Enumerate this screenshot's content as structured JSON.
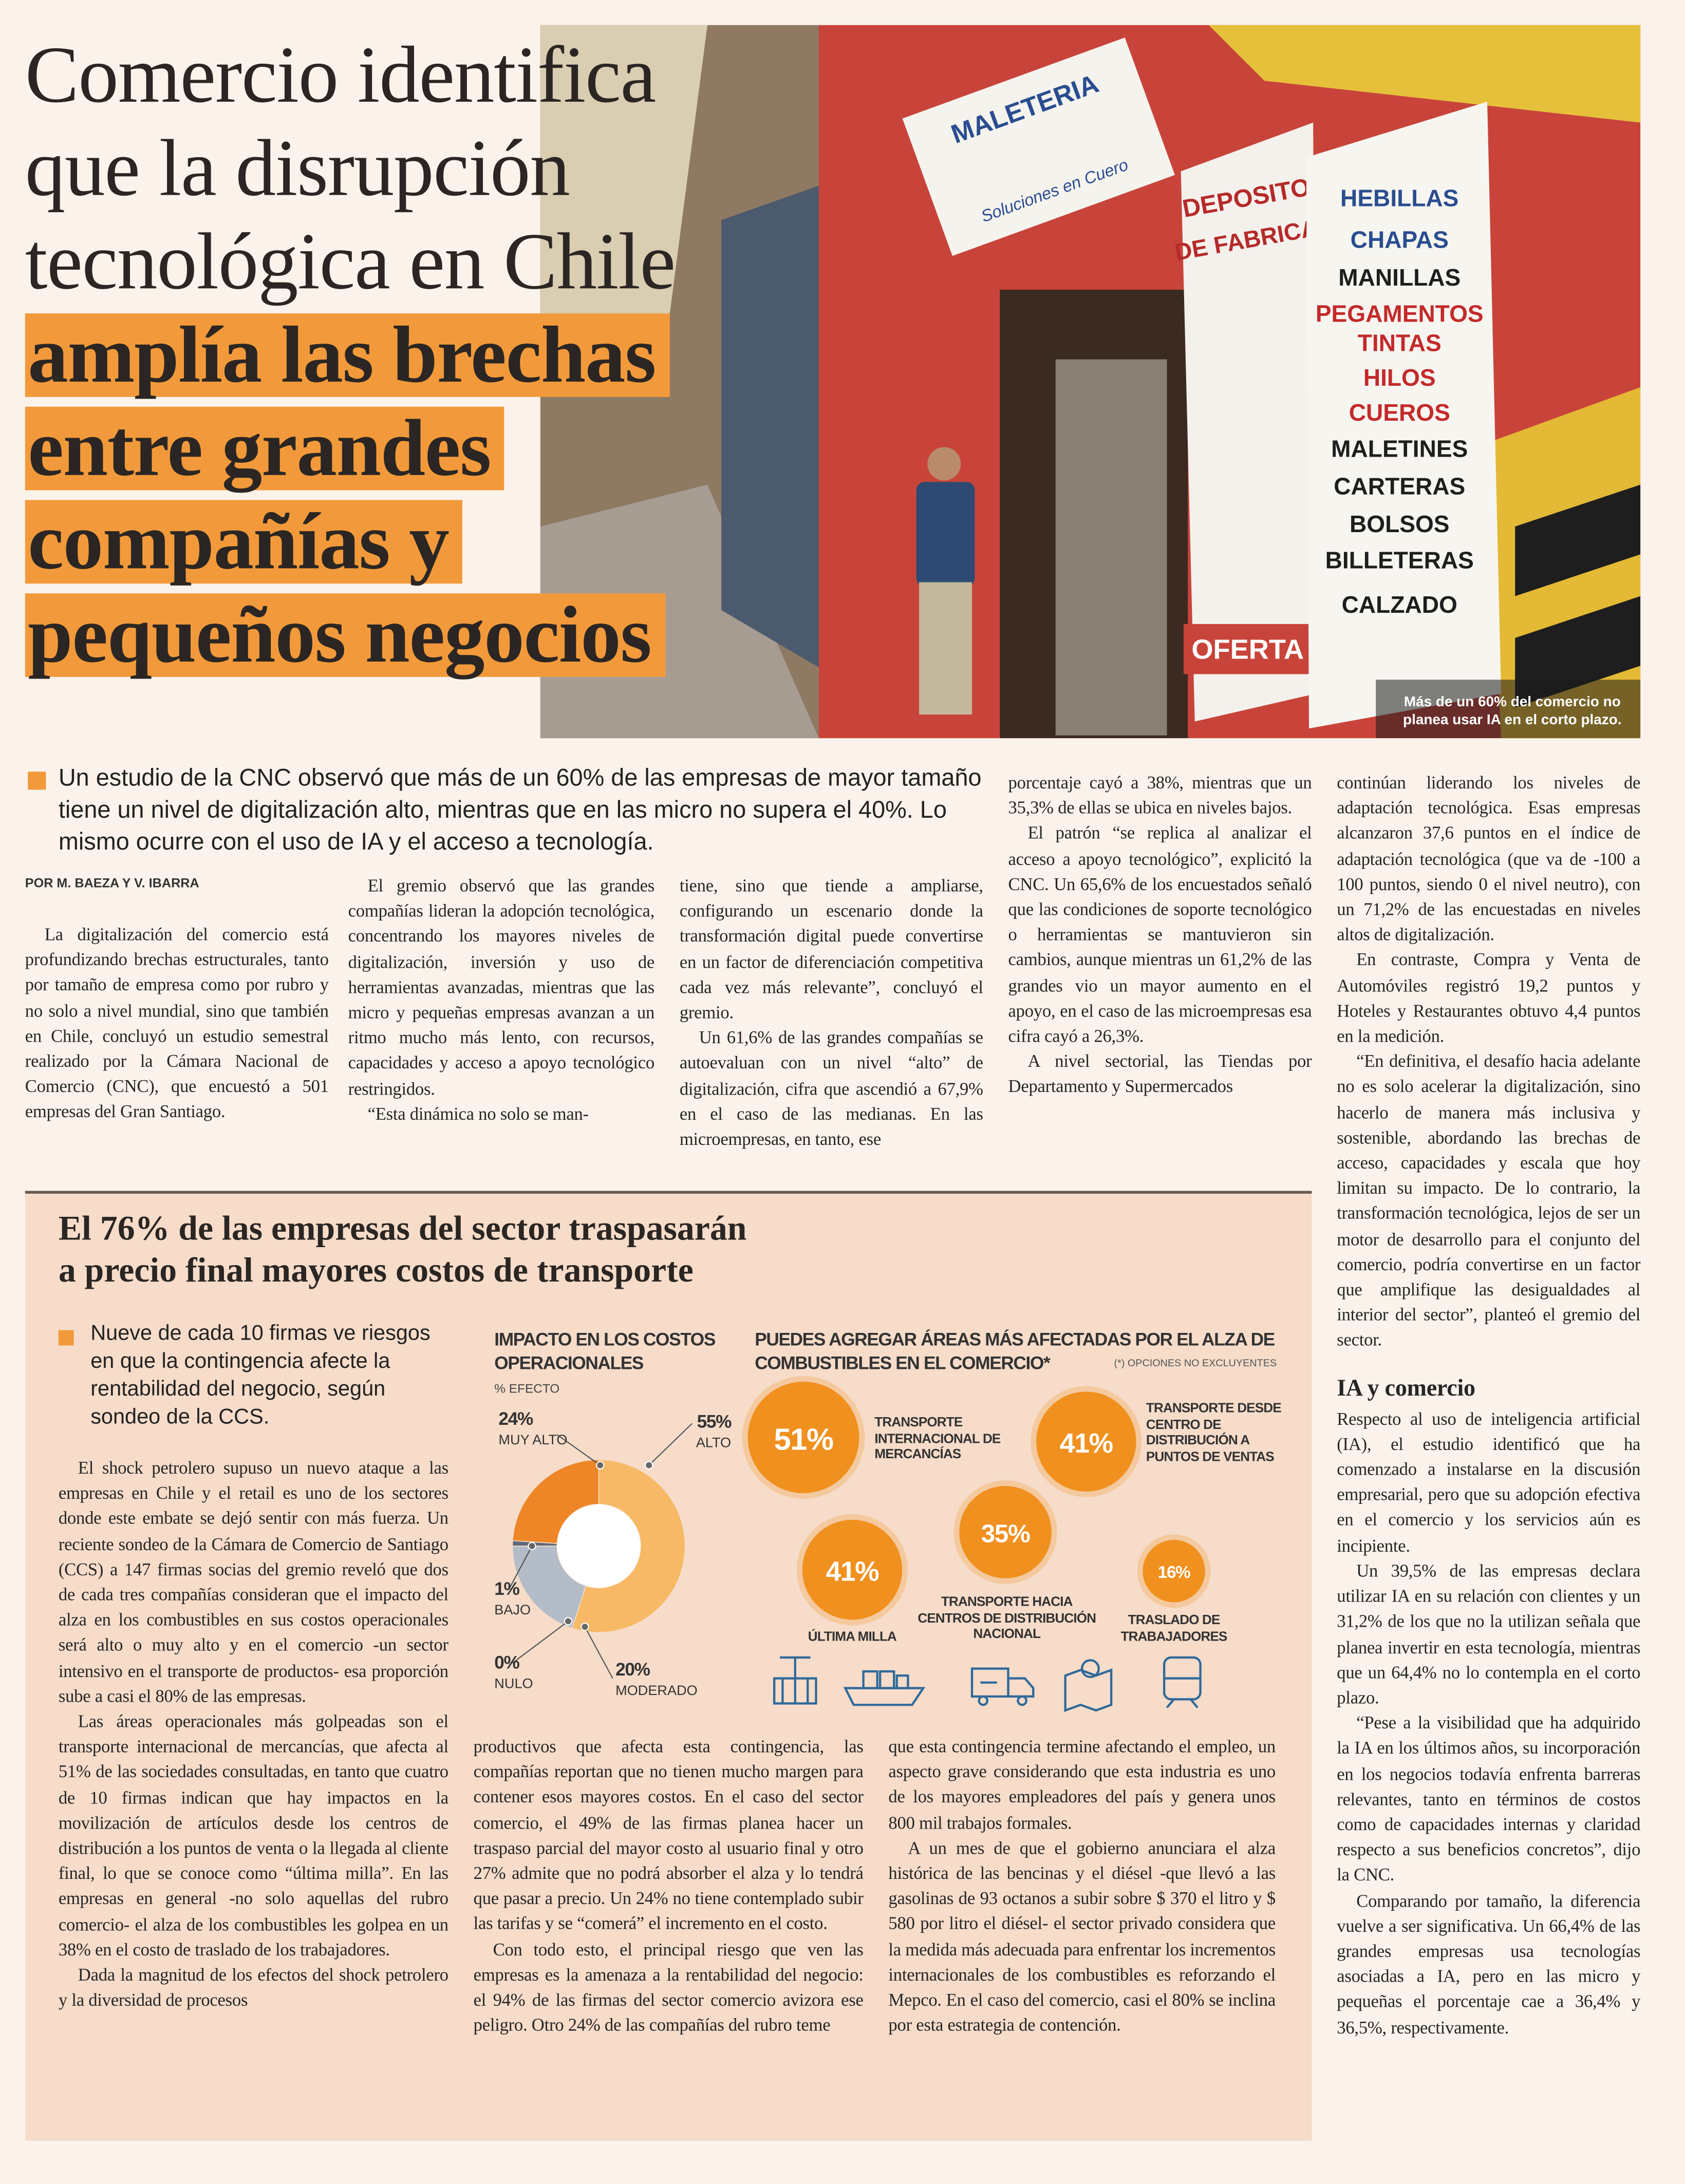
{
  "headline": {
    "lines": [
      "Comercio identifica",
      "que la disrupción",
      "tecnológica en Chile"
    ],
    "highlighted_lines": [
      "amplía las brechas",
      "entre grandes",
      "compañías y",
      "pequeños negocios"
    ]
  },
  "photo": {
    "caption": "Más de un 60% del comercio no planea usar IA en el corto plazo.",
    "sign_texts": [
      "MALETERIA",
      "Soluciones en Cuero",
      "DEPOSITO",
      "DE FABRICA",
      "HEBILLAS",
      "CHAPAS",
      "MANILLAS",
      "PEGAMENTOS",
      "TINTAS",
      "HILOS",
      "CUEROS",
      "MALETINES",
      "CARTERAS",
      "BOLSOS",
      "BILLETERAS",
      "CALZADO",
      "OFERTA"
    ]
  },
  "lead": "Un estudio de la CNC observó que más de un 60% de las empresas de mayor tamaño tiene un nivel de digitalización alto, mientras que en las micro no supera el 40%. Lo mismo ocurre con el uso de IA y el acceso a tecnología.",
  "byline": "POR M. BAEZA Y V. IBARRA",
  "article": {
    "columns": [
      [
        "La digitalización del comercio está profundizando brechas estructurales, tanto por tamaño de empresa como por rubro y no solo a nivel mundial, sino que también en Chile, concluyó un estudio semestral realizado por la Cámara Nacional de Comercio (CNC), que encuestó a 501 empresas del Gran Santiago."
      ],
      [
        "El gremio observó que las grandes compañías lideran la adopción tecnológica, concentrando los mayores niveles de digitalización, inversión y uso de herramientas avanzadas, mientras que las micro y pequeñas empresas avanzan a un ritmo mucho más lento, con recursos, capacidades y acceso a apoyo tecnológico restringidos.",
        "“Esta dinámica no solo se man-"
      ],
      [
        "tiene, sino que tiende a ampliarse, configurando un escenario donde la transformación digital puede convertirse en un factor de diferenciación competitiva cada vez más relevante”, concluyó el gremio.",
        "Un 61,6% de las grandes compañías se autoevaluan con un nivel “alto” de digitalización, cifra que ascendió a 67,9% en el caso de las medianas. En las microempresas, en tanto, ese"
      ],
      [
        "porcentaje cayó a 38%, mientras que un 35,3% de ellas se ubica en niveles bajos.",
        "El patrón “se replica al analizar el acceso a apoyo tecnológico”, explicitó la CNC. Un 65,6% de los encuestados señaló que las condiciones de soporte tecnológico o herramientas se mantuvieron sin cambios, aunque mientras un 61,2% de las grandes vio un mayor aumento en el apoyo, en el caso de las microempresas esa cifra cayó a 26,3%.",
        "A nivel sectorial, las Tiendas por Departamento y Supermercados"
      ],
      [
        "continúan liderando los niveles de adaptación tecnológica. Esas empresas alcanzaron 37,6 puntos en el índice de adaptación tecnológica (que va de -100 a 100 puntos, siendo 0 el nivel neutro), con un 71,2% de las encuestadas en niveles altos de digitalización.",
        "En contraste, Compra y Venta de Automóviles registró 19,2 puntos y Hoteles y Restaurantes obtuvo 4,4 puntos en la medición.",
        "“En definitiva, el desafío hacia adelante no es solo acelerar la digitalización, sino hacerlo de manera más inclusiva y sostenible, abordando las brechas de acceso, capacidades y escala que hoy limitan su impacto. De lo contrario, la transformación tecnológica, lejos de ser un motor de desarrollo para el conjunto del comercio, podría convertirse en un factor que amplifique las desigualdades al interior del sector”, planteó el gremio del sector."
      ]
    ],
    "subhead": "IA y comercio",
    "after_subhead": [
      "Respecto al uso de inteligencia artificial (IA), el estudio identificó que ha comenzado a instalarse en la discusión empresarial, pero que su adopción efectiva en el comercio y los servicios aún es incipiente.",
      "Un 39,5% de las empresas declara utilizar IA en su relación con clientes y un 31,2% de los que no la utilizan señala que planea invertir en esta tecnología, mientras que un 64,4% no lo contempla en el corto plazo.",
      "“Pese a la visibilidad que ha adquirido la IA en los últimos años, su incorporación en los negocios todavía enfrenta barreras relevantes, tanto en términos de costos como de capacidades internas y claridad respecto a sus beneficios concretos”, dijo la CNC.",
      "Comparando por tamaño, la diferencia vuelve a ser significativa. Un 66,4% de las grandes empresas usa tecnologías asociadas a IA, pero en las micro y pequeñas el porcentaje cae a 36,4% y 36,5%, respectivamente."
    ]
  },
  "box": {
    "title_lines": [
      "El 76% de las empresas del sector traspasarán",
      "a precio final mayores costos de transporte"
    ],
    "lead": "Nueve de cada 10 firmas ve riesgos en que la contingencia afecte la rentabilidad del negocio, según sondeo de la CCS.",
    "columns": [
      [
        "El shock petrolero supuso un nuevo ataque a las empresas en Chile y el retail es uno de los sectores donde este embate se dejó sentir con más fuerza. Un reciente sondeo de la Cámara de Comercio de Santiago (CCS) a 147 firmas socias del gremio reveló que dos de cada tres compañías consideran que el impacto del alza en los combustibles en sus costos operacionales será alto o muy alto y en el comercio -un sector intensivo en el transporte de productos- esa proporción sube a casi el 80% de las empresas.",
        "Las áreas operacionales más golpeadas son el transporte internacional de mercancías, que afecta al 51% de las sociedades consultadas, en tanto que cuatro de 10 firmas indican que hay impactos en la movilización de artículos desde los centros de distribución a los puntos de venta o la llegada al cliente final, lo que se conoce como “última milla”. En las empresas en general -no solo aquellas del rubro comercio- el alza de los combustibles les golpea en un 38% en el costo de traslado de los trabajadores.",
        "Dada la magnitud de los efectos del shock petrolero y la diversidad de procesos"
      ],
      [
        "productivos que afecta esta contingencia, las compañías reportan que no tienen mucho margen para contener esos mayores costos. En el caso del sector comercio, el 49% de las firmas planea hacer un traspaso parcial del mayor costo al usuario final y otro 27% admite que no podrá absorber el alza y lo tendrá que pasar a precio. Un 24% no tiene contemplado subir las tarifas y se “comerá” el incremento en el costo.",
        "Con todo esto, el principal riesgo que ven las empresas es la amenaza a la rentabilidad del negocio: el 94% de las firmas del sector comercio avizora ese peligro. Otro 24% de las compañías del rubro teme"
      ],
      [
        "que esta contingencia termine afectando el empleo, un aspecto grave considerando que esta industria es uno de los mayores empleadores del país y genera unos 800 mil trabajos formales.",
        "A un mes de que el gobierno anunciara el alza histórica de las bencinas y el diésel -que llevó a las gasolinas de 93 octanos a subir sobre $ 370 el litro y $ 580 por litro el diésel- el sector privado considera que la medida más adecuada para enfrentar los incrementos internacionales de los combustibles es reforzando el Mepco. En el caso del comercio, casi el 80% se inclina por esta estrategia de contención."
      ]
    ]
  },
  "chart_data": [
    {
      "type": "donut",
      "title": "IMPACTO EN LOS COSTOS OPERACIONALES",
      "subtitle": "% EFECTO",
      "categories": [
        "ALTO",
        "MODERADO",
        "NULO",
        "BAJO",
        "MUY ALTO"
      ],
      "values": [
        55,
        20,
        0,
        1,
        24
      ],
      "value_labels": [
        "55%",
        "20%",
        "0%",
        "1%",
        "24%"
      ],
      "colors": [
        "#f7b965",
        "#b3bcc7",
        "#8c96a3",
        "#5f6b79",
        "#ee8526"
      ]
    },
    {
      "type": "bubble",
      "title": "PUEDES AGREGAR ÁREAS MÁS AFECTADAS POR EL ALZA DE COMBUSTIBLES EN EL COMERCIO*",
      "note": "(*) OPCIONES NO EXCLUYENTES",
      "categories": [
        "TRANSPORTE INTERNACIONAL DE MERCANCÍAS",
        "TRANSPORTE DESDE CENTRO DE DISTRIBUCIÓN A PUNTOS DE VENTAS",
        "ÚLTIMA MILLA",
        "TRANSPORTE HACIA CENTROS DE DISTRIBUCIÓN NACIONAL",
        "TRASLADO DE TRABAJADORES"
      ],
      "values": [
        51,
        41,
        41,
        35,
        16
      ],
      "value_labels": [
        "51%",
        "41%",
        "41%",
        "35%",
        "16%"
      ],
      "color": "#f0901e"
    }
  ]
}
